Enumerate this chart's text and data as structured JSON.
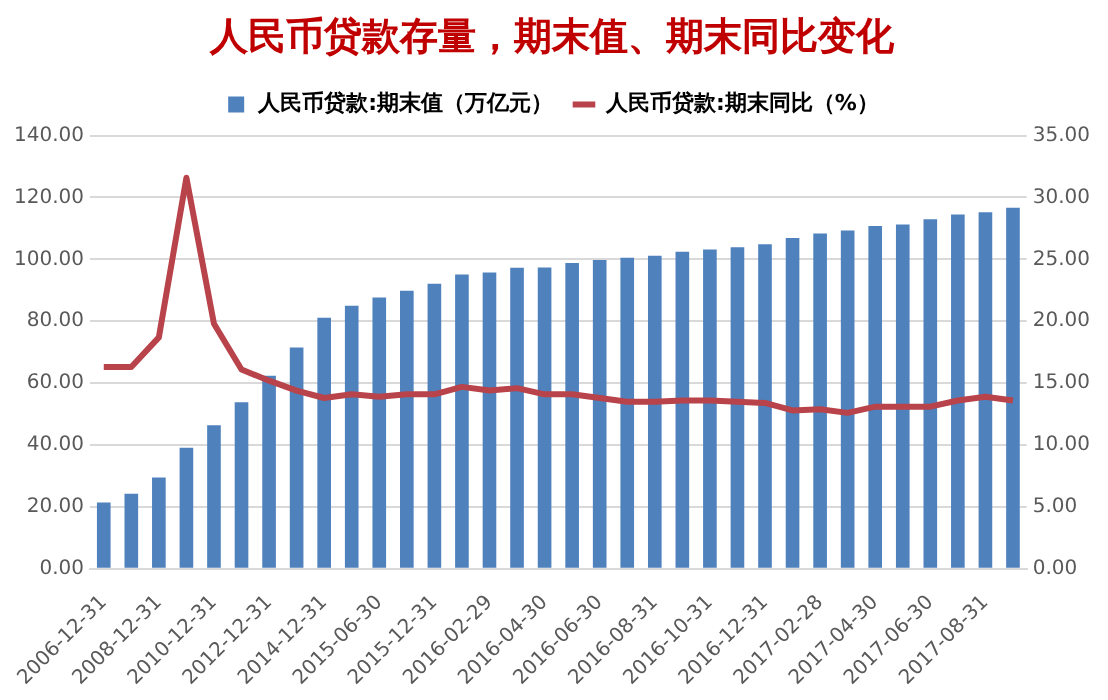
{
  "chart_data": {
    "type": "bar",
    "title": "人民币贷款存量，期末值、期末同比变化",
    "categories": [
      "2006-12-31",
      null,
      "2008-12-31",
      null,
      "2010-12-31",
      null,
      "2012-12-31",
      null,
      "2014-12-31",
      null,
      "2015-06-30",
      null,
      "2015-12-31",
      null,
      "2016-02-29",
      null,
      "2016-04-30",
      null,
      "2016-06-30",
      null,
      "2016-08-31",
      null,
      "2016-10-31",
      null,
      "2016-12-31",
      null,
      "2017-02-28",
      null,
      "2017-04-30",
      null,
      "2017-06-30",
      null,
      "2017-08-31",
      null
    ],
    "series": [
      {
        "name": "人民币贷款:期末值（万亿元）",
        "color": "#4f81bd",
        "values": [
          21.4,
          24.3,
          29.5,
          39.1,
          46.4,
          53.8,
          62.4,
          71.5,
          81.1,
          85.0,
          87.7,
          89.9,
          92.1,
          95.1,
          95.8,
          97.3,
          97.4,
          98.8,
          99.8,
          100.5,
          101.2,
          102.5,
          103.2,
          103.9,
          104.9,
          106.9,
          108.4,
          109.3,
          110.8,
          111.3,
          113.0,
          114.5,
          115.2,
          116.7
        ]
      },
      {
        "name": "人民币贷款:期末同比（%）",
        "type": "line",
        "axis": "y2",
        "color": "#b8434a",
        "values": [
          16.3,
          16.3,
          18.7,
          31.6,
          19.8,
          16.1,
          15.2,
          14.4,
          13.8,
          14.1,
          13.9,
          14.1,
          14.1,
          14.7,
          14.4,
          14.6,
          14.1,
          14.1,
          13.8,
          13.5,
          13.5,
          13.6,
          13.6,
          13.5,
          13.4,
          12.8,
          12.9,
          12.6,
          13.1,
          13.1,
          13.1,
          13.6,
          13.9,
          13.6
        ]
      }
    ],
    "ylim": [
      0,
      140
    ],
    "yticks": [
      {
        "value": 0,
        "label": "0.00"
      },
      {
        "value": 20,
        "label": "20.00"
      },
      {
        "value": 40,
        "label": "40.00"
      },
      {
        "value": 60,
        "label": "60.00"
      },
      {
        "value": 80,
        "label": "80.00"
      },
      {
        "value": 100,
        "label": "100.00"
      },
      {
        "value": 120,
        "label": "120.00"
      },
      {
        "value": 140,
        "label": "140.00"
      }
    ],
    "y2lim": [
      0,
      35
    ],
    "y2ticks": [
      {
        "value": 0,
        "label": "0.00"
      },
      {
        "value": 5,
        "label": "5.00"
      },
      {
        "value": 10,
        "label": "10.00"
      },
      {
        "value": 15,
        "label": "15.00"
      },
      {
        "value": 20,
        "label": "20.00"
      },
      {
        "value": 25,
        "label": "25.00"
      },
      {
        "value": 30,
        "label": "30.00"
      },
      {
        "value": 35,
        "label": "35.00"
      }
    ],
    "grid": "y",
    "legend": "top",
    "marker": "none",
    "line_style": "solid"
  }
}
